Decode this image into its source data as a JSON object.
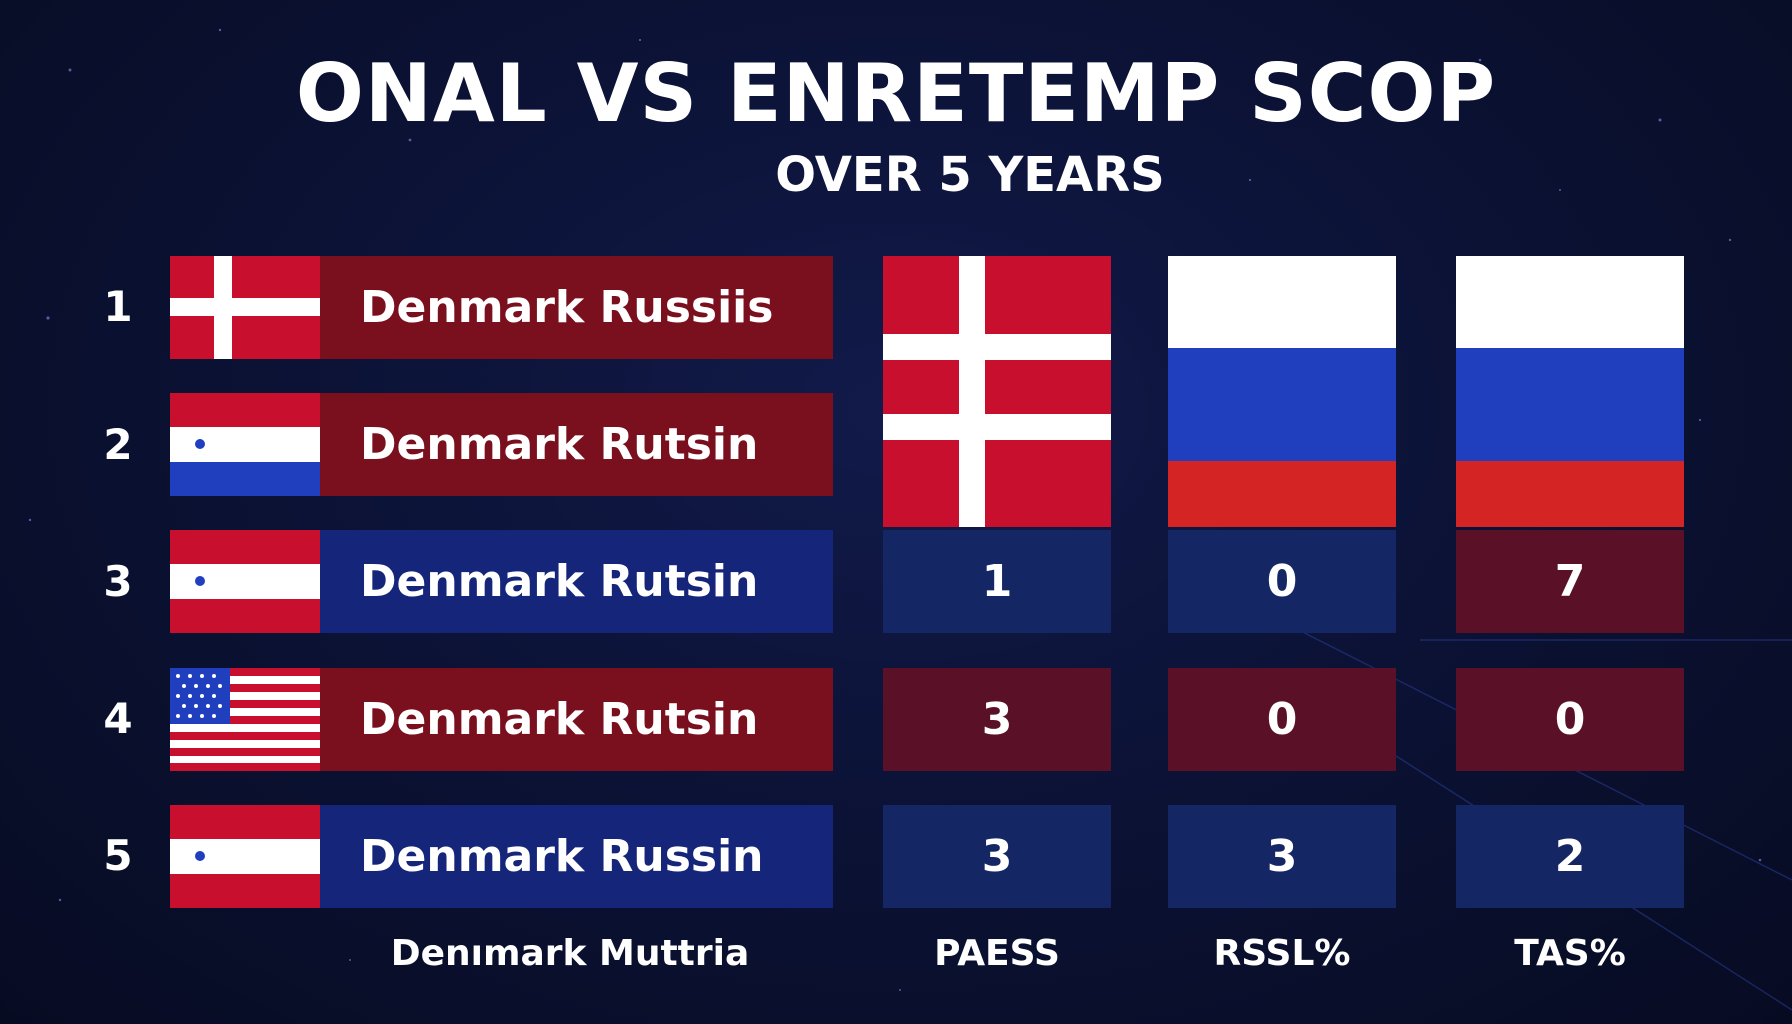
{
  "title": "ONAL VS ENRETEMP SCOP",
  "subtitle": "OVER 5 YEARS",
  "rows": [
    {
      "rank": "1",
      "label": "Denmark Russiis",
      "flag": "denmark-flag",
      "bar_color": "#7a0f1e"
    },
    {
      "rank": "2",
      "label": "Denmark Rutsin",
      "flag": "tricolor-flag",
      "bar_color": "#7a0f1e"
    },
    {
      "rank": "3",
      "label": "Denmark Rutsin",
      "flag": "austria-flag",
      "bar_color": "#15257a"
    },
    {
      "rank": "4",
      "label": "Denmark Rutsin",
      "flag": "usa-flag",
      "bar_color": "#7a0f1e"
    },
    {
      "rank": "5",
      "label": "Denmark Russin",
      "flag": "austria-flag",
      "bar_color": "#15257a"
    }
  ],
  "columns": [
    {
      "header": "PAESS",
      "flag": "denmark-flag",
      "values": [
        "1",
        "3",
        "3"
      ]
    },
    {
      "header": "RSSL%",
      "flag": "russia-flag",
      "values": [
        "0",
        "0",
        "3"
      ]
    },
    {
      "header": "TAS%",
      "flag": "russia-flag",
      "values": [
        "7",
        "0",
        "2"
      ]
    }
  ],
  "footer": {
    "left_label": "Denımark Muttria"
  },
  "colors": {
    "background": "#0b1130",
    "bar_red": "#7a0f1e",
    "bar_blue": "#15257a",
    "cell_navy": "#142664",
    "cell_maroon": "#5a1128",
    "flag_red": "#c8102e",
    "flag_blue": "#1f3fbf",
    "flag_white": "#ffffff"
  }
}
